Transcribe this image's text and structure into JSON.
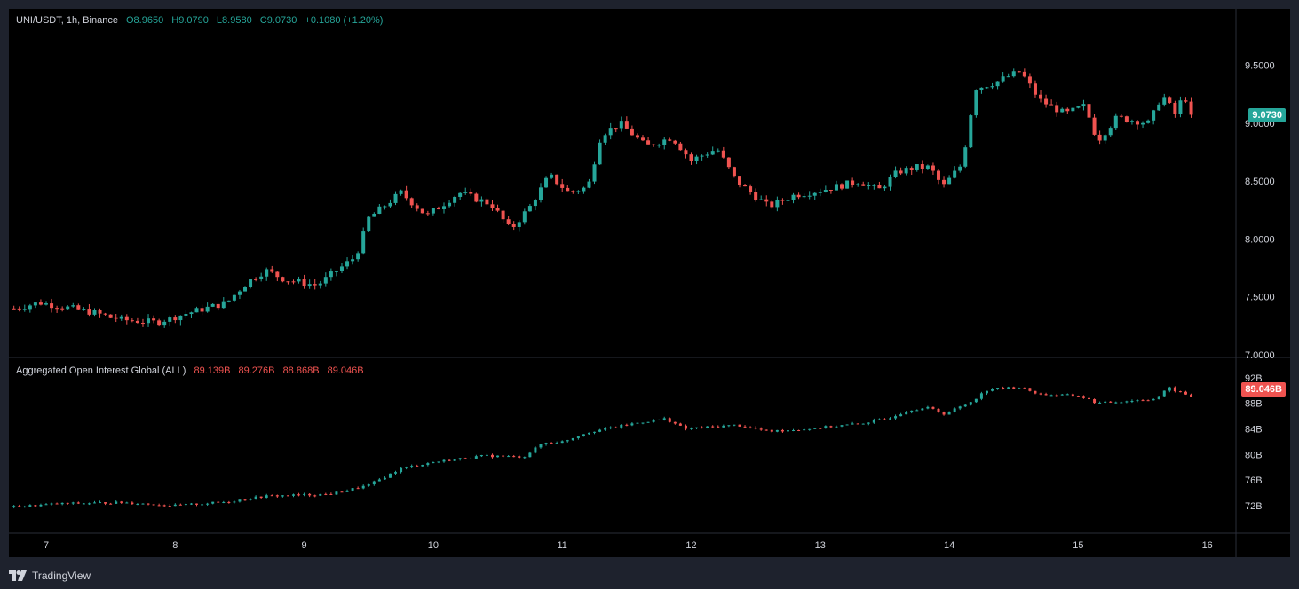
{
  "header": {
    "symbol": "UNI/USDT, 1h, Binance",
    "open": "O8.9650",
    "high": "H9.0790",
    "low": "L8.9580",
    "close": "C9.0730",
    "change": "+0.1080 (+1.20%)"
  },
  "oi_header": {
    "title": "Aggregated Open Interest Global (ALL)",
    "v1": "89.139B",
    "v2": "89.276B",
    "v3": "88.868B",
    "v4": "89.046B"
  },
  "price_tag": "9.0730",
  "oi_tag": "89.046B",
  "footer": {
    "brand": "TradingView"
  },
  "colors": {
    "up": "#26a69a",
    "down": "#ef5350",
    "background": "#000000",
    "frame": "#1e222d",
    "text": "#d1d4dc"
  },
  "icons": [
    "tradingview-logo-icon"
  ],
  "chart_data": [
    {
      "type": "candlestick",
      "title": "UNI/USDT, 1h, Binance",
      "ylim": [
        7.0,
        9.85
      ],
      "y_ticks": [
        "9.5000",
        "9.0000",
        "8.5000",
        "8.0000",
        "7.5000",
        "7.0000"
      ],
      "x_ticks": [
        "7",
        "8",
        "9",
        "10",
        "11",
        "12",
        "13",
        "14",
        "15",
        "16"
      ],
      "grid": false,
      "last_price": 9.073,
      "keypoints": [
        {
          "day": 6.75,
          "close": 7.4
        },
        {
          "day": 6.95,
          "close": 7.45
        },
        {
          "day": 7.3,
          "close": 7.38
        },
        {
          "day": 7.6,
          "close": 7.3
        },
        {
          "day": 7.85,
          "close": 7.28
        },
        {
          "day": 8.1,
          "close": 7.36
        },
        {
          "day": 8.4,
          "close": 7.45
        },
        {
          "day": 8.55,
          "close": 7.62
        },
        {
          "day": 8.7,
          "close": 7.73
        },
        {
          "day": 8.85,
          "close": 7.65
        },
        {
          "day": 9.1,
          "close": 7.6
        },
        {
          "day": 9.4,
          "close": 7.85
        },
        {
          "day": 9.5,
          "close": 8.18
        },
        {
          "day": 9.75,
          "close": 8.4
        },
        {
          "day": 9.95,
          "close": 8.2
        },
        {
          "day": 10.2,
          "close": 8.4
        },
        {
          "day": 10.45,
          "close": 8.3
        },
        {
          "day": 10.6,
          "close": 8.08
        },
        {
          "day": 10.75,
          "close": 8.28
        },
        {
          "day": 10.9,
          "close": 8.55
        },
        {
          "day": 11.05,
          "close": 8.4
        },
        {
          "day": 11.2,
          "close": 8.45
        },
        {
          "day": 11.3,
          "close": 8.9
        },
        {
          "day": 11.45,
          "close": 9.0
        },
        {
          "day": 11.65,
          "close": 8.8
        },
        {
          "day": 11.85,
          "close": 8.88
        },
        {
          "day": 12.0,
          "close": 8.68
        },
        {
          "day": 12.2,
          "close": 8.78
        },
        {
          "day": 12.35,
          "close": 8.5
        },
        {
          "day": 12.6,
          "close": 8.28
        },
        {
          "day": 12.8,
          "close": 8.38
        },
        {
          "day": 13.0,
          "close": 8.42
        },
        {
          "day": 13.3,
          "close": 8.5
        },
        {
          "day": 13.45,
          "close": 8.42
        },
        {
          "day": 13.6,
          "close": 8.58
        },
        {
          "day": 13.75,
          "close": 8.62
        },
        {
          "day": 13.85,
          "close": 8.62
        },
        {
          "day": 13.95,
          "close": 8.45
        },
        {
          "day": 14.1,
          "close": 8.65
        },
        {
          "day": 14.2,
          "close": 9.3
        },
        {
          "day": 14.35,
          "close": 9.35
        },
        {
          "day": 14.55,
          "close": 9.45
        },
        {
          "day": 14.7,
          "close": 9.2
        },
        {
          "day": 14.9,
          "close": 9.08
        },
        {
          "day": 15.05,
          "close": 9.15
        },
        {
          "day": 15.15,
          "close": 8.85
        },
        {
          "day": 15.3,
          "close": 9.05
        },
        {
          "day": 15.55,
          "close": 9.0
        },
        {
          "day": 15.65,
          "close": 9.25
        },
        {
          "day": 15.75,
          "close": 9.08
        },
        {
          "day": 15.82,
          "close": 9.25
        },
        {
          "day": 15.88,
          "close": 9.073
        }
      ]
    },
    {
      "type": "candlestick",
      "title": "Aggregated Open Interest Global (ALL)",
      "ylim": [
        69.5,
        93.5
      ],
      "y_ticks": [
        "92B",
        "88B",
        "84B",
        "80B",
        "76B",
        "72B"
      ],
      "last_value": 89.046,
      "keypoints": [
        {
          "day": 6.75,
          "close": 71.8
        },
        {
          "day": 7.1,
          "close": 72.3
        },
        {
          "day": 7.6,
          "close": 72.5
        },
        {
          "day": 8.0,
          "close": 72.0
        },
        {
          "day": 8.4,
          "close": 72.6
        },
        {
          "day": 8.7,
          "close": 73.5
        },
        {
          "day": 9.2,
          "close": 73.8
        },
        {
          "day": 9.5,
          "close": 75.2
        },
        {
          "day": 9.75,
          "close": 77.8
        },
        {
          "day": 10.0,
          "close": 78.8
        },
        {
          "day": 10.4,
          "close": 79.8
        },
        {
          "day": 10.7,
          "close": 79.6
        },
        {
          "day": 10.85,
          "close": 81.8
        },
        {
          "day": 11.0,
          "close": 82.0
        },
        {
          "day": 11.2,
          "close": 83.5
        },
        {
          "day": 11.6,
          "close": 85.0
        },
        {
          "day": 11.8,
          "close": 85.6
        },
        {
          "day": 11.95,
          "close": 84.0
        },
        {
          "day": 12.35,
          "close": 84.6
        },
        {
          "day": 12.6,
          "close": 83.6
        },
        {
          "day": 12.9,
          "close": 84.0
        },
        {
          "day": 13.3,
          "close": 84.8
        },
        {
          "day": 13.5,
          "close": 85.5
        },
        {
          "day": 13.7,
          "close": 87.0
        },
        {
          "day": 13.85,
          "close": 87.3
        },
        {
          "day": 13.95,
          "close": 86.3
        },
        {
          "day": 14.15,
          "close": 88.0
        },
        {
          "day": 14.3,
          "close": 90.2
        },
        {
          "day": 14.55,
          "close": 90.5
        },
        {
          "day": 14.7,
          "close": 89.4
        },
        {
          "day": 15.0,
          "close": 89.2
        },
        {
          "day": 15.15,
          "close": 88.0
        },
        {
          "day": 15.4,
          "close": 88.4
        },
        {
          "day": 15.6,
          "close": 88.7
        },
        {
          "day": 15.7,
          "close": 90.4
        },
        {
          "day": 15.8,
          "close": 89.6
        },
        {
          "day": 15.88,
          "close": 89.046
        }
      ]
    }
  ]
}
